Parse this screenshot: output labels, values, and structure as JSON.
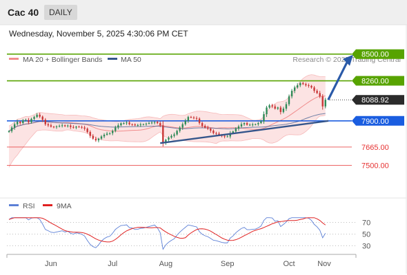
{
  "header": {
    "title": "Cac 40",
    "period": "DAILY",
    "datetime": "Wednesday, November 5, 2025 4:30:06 PM CET",
    "credit": "Research © 2025 Trading Central"
  },
  "chart_data": [
    {
      "type": "candlestick",
      "title": "Cac 40",
      "legend": [
        {
          "name": "MA 20 + Bollinger Bands",
          "color": "#f08c8c"
        },
        {
          "name": "MA 50",
          "color": "#34558b"
        }
      ],
      "x_ticks": [
        "Jun",
        "Jul",
        "Aug",
        "Sep",
        "Oct",
        "Nov"
      ],
      "ylim": [
        7250,
        8560
      ],
      "start_open": 7800,
      "closes": [
        7808,
        7840,
        7870,
        7892,
        7880,
        7905,
        7908,
        7888,
        7918,
        7935,
        7955,
        7938,
        7910,
        7870,
        7860,
        7848,
        7845,
        7850,
        7855,
        7860,
        7852,
        7858,
        7845,
        7840,
        7848,
        7845,
        7840,
        7830,
        7800,
        7765,
        7740,
        7725,
        7740,
        7760,
        7775,
        7785,
        7790,
        7810,
        7840,
        7860,
        7878,
        7880,
        7885,
        7870,
        7868,
        7860,
        7862,
        7868,
        7870,
        7875,
        7880,
        7885,
        7890,
        7880,
        7860,
        7700,
        7730,
        7750,
        7765,
        7778,
        7810,
        7840,
        7870,
        7900,
        7935,
        7930,
        7925,
        7920,
        7880,
        7855,
        7840,
        7830,
        7812,
        7790,
        7785,
        7775,
        7765,
        7760,
        7760,
        7790,
        7805,
        7830,
        7850,
        7870,
        7880,
        7865,
        7865,
        7868,
        7870,
        7880,
        7895,
        7960,
        8020,
        8040,
        8030,
        8010,
        8020,
        7980,
        8010,
        8050,
        8120,
        8170,
        8200,
        8220,
        8240,
        8230,
        8220,
        8215,
        8200,
        8170,
        8150,
        8120,
        8030,
        8089
      ],
      "levels": [
        {
          "label": "8500.00",
          "value": 8500,
          "color": "#57a300",
          "style": "box"
        },
        {
          "label": "8260.00",
          "value": 8260,
          "color": "#57a300",
          "style": "box"
        },
        {
          "label": "8088.92",
          "value": 8088.92,
          "color": "#2b2b2b",
          "style": "box"
        },
        {
          "label": "7900.00",
          "value": 7900,
          "color": "#1a5de0",
          "style": "box"
        },
        {
          "label": "7665.00",
          "value": 7665,
          "color": "#e63030",
          "style": "text"
        },
        {
          "label": "7500.00",
          "value": 7500,
          "color": "#e63030",
          "style": "text"
        }
      ]
    },
    {
      "type": "line",
      "title": "RSI",
      "series": [
        {
          "name": "RSI",
          "color": "#5b7fd6"
        },
        {
          "name": "9MA",
          "color": "#e02020"
        }
      ],
      "ylim": [
        20,
        80
      ],
      "y_ticks": [
        "70",
        "50",
        "30"
      ]
    }
  ]
}
